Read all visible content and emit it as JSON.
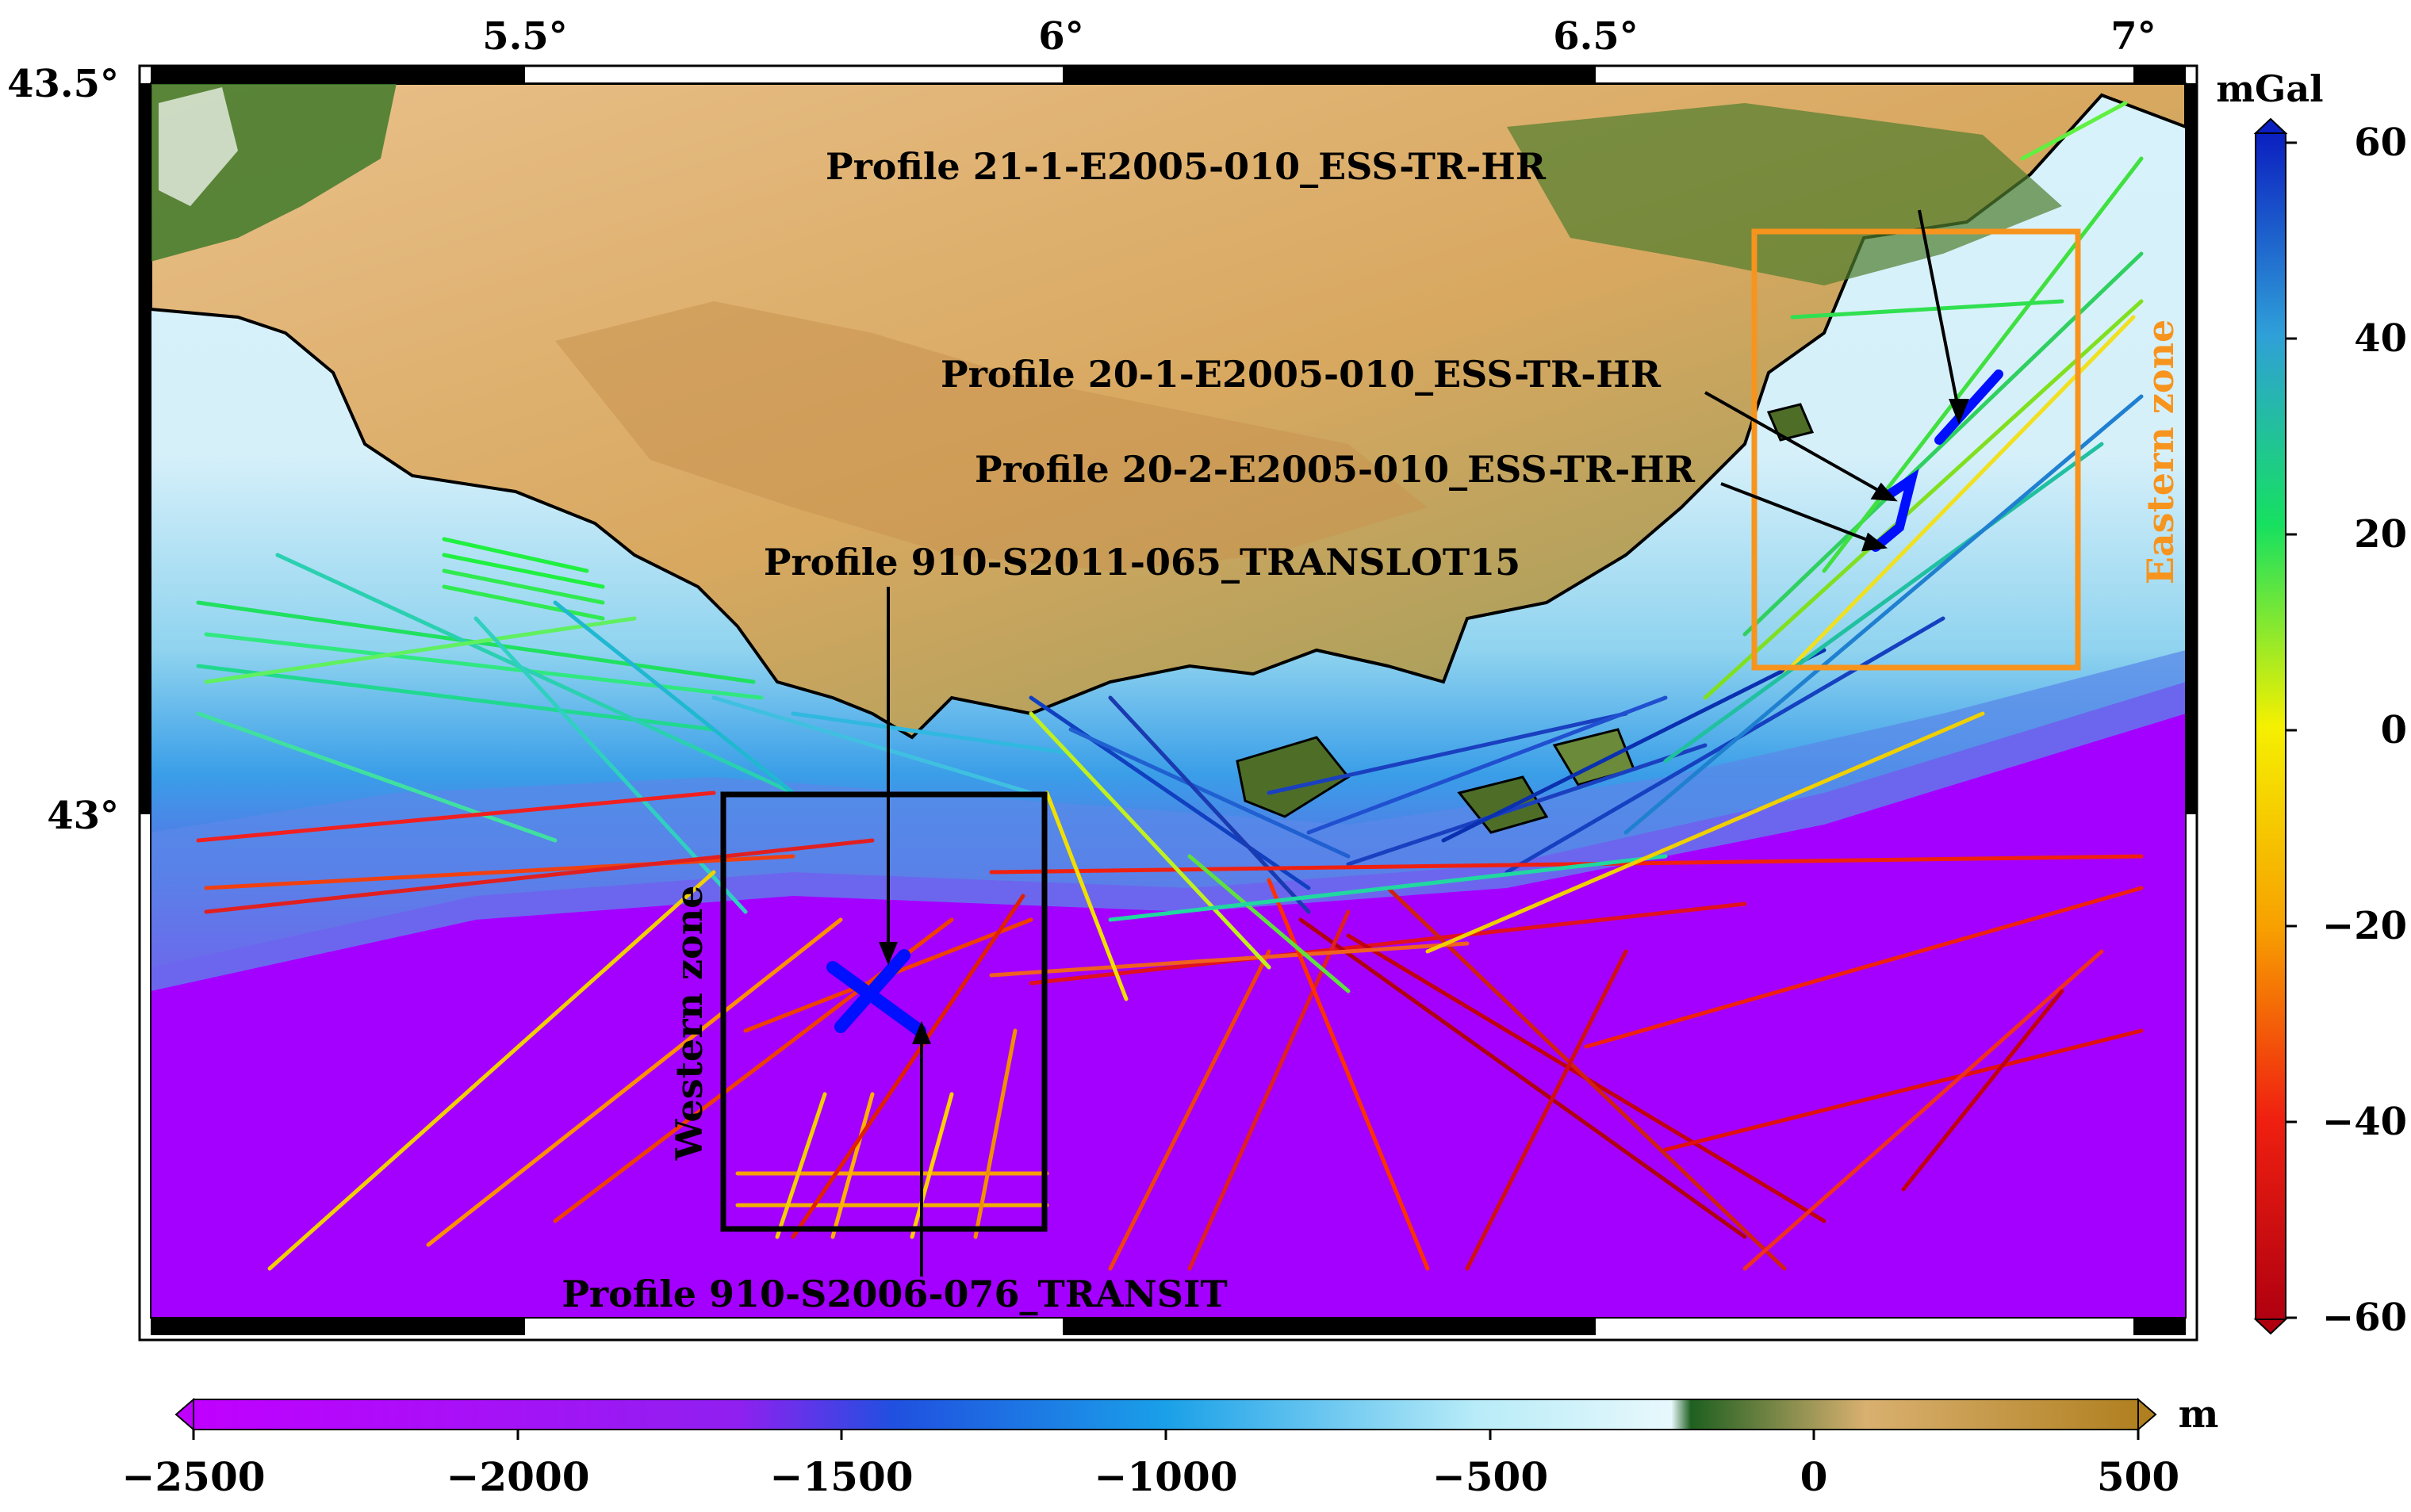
{
  "map": {
    "top_axis_labels": [
      "5.5°",
      "6°",
      "6.5°",
      "7°"
    ],
    "left_axis_labels": [
      "43.5°",
      "43°"
    ],
    "annotations": {
      "profile_21_1": "Profile 21-1-E2005-010_ESS-TR-HR",
      "profile_20_1": "Profile 20-1-E2005-010_ESS-TR-HR",
      "profile_20_2": "Profile 20-2-E2005-010_ESS-TR-HR",
      "profile_910_translot": "Profile 910-S2011-065_TRANSLOT15",
      "profile_910_transit": "Profile 910-S2006-076_TRANSIT"
    },
    "zones": {
      "eastern": "Eastern zone",
      "western": "Western zone"
    },
    "zone_colors": {
      "eastern": "#f7941d",
      "western": "#000000"
    },
    "profile_color": "#0000ff"
  },
  "gravity_scale": {
    "unit": "mGal",
    "ticks": [
      "60",
      "40",
      "20",
      "0",
      "−20",
      "−40",
      "−60"
    ]
  },
  "bathy_scale": {
    "unit": "m",
    "ticks": [
      "−2500",
      "−2000",
      "−1500",
      "−1000",
      "−500",
      "0",
      "500"
    ]
  }
}
